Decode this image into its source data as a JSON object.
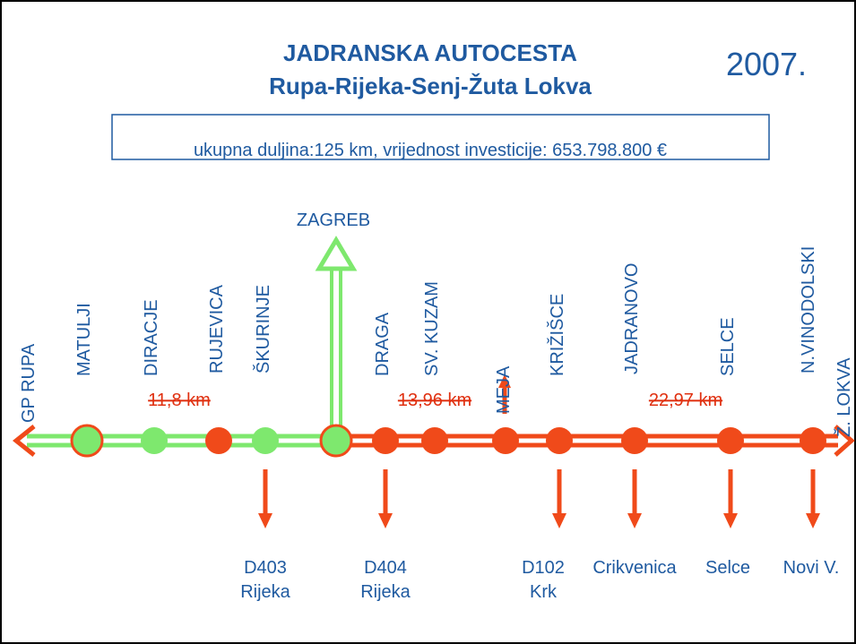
{
  "header": {
    "title": [
      "JADRANSKA AUTOCESTA",
      "Rupa-Rijeka-Senj-Žuta Lokva"
    ],
    "year": "2007."
  },
  "summary": "ukupna duljina:125 km, vrijednost investicije: 653.798.800 €",
  "junction": "ZAGREB",
  "stations": [
    "GP RUPA",
    "MATULJI",
    "DIRACJE",
    "RUJEVICA",
    "ŠKURINJE",
    "DRAGA",
    "SV. KUZAM",
    "MEJA",
    "KRIŽIŠCE",
    "JADRANOVO",
    "SELCE",
    "N.VINODOLSKI",
    "Ž. LOKVA"
  ],
  "distances": [
    "11,8 km",
    "13,96 km",
    "22,97 km"
  ],
  "exits": [
    [
      "D403",
      "Rijeka"
    ],
    [
      "D404",
      "Rijeka"
    ],
    [
      "D102",
      "Krk"
    ],
    [
      "Crikvenica"
    ],
    [
      "Selce"
    ],
    [
      "Novi V."
    ]
  ]
}
